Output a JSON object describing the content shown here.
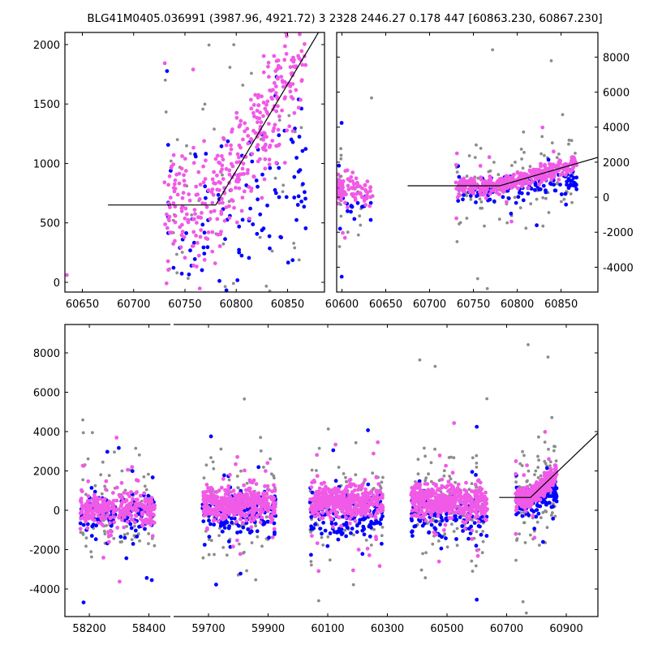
{
  "title": "BLG41M0405.036991 (3987.96, 4921.72)   3 2328 2446.27 0.178 447 [60863.230, 60867.230]",
  "colors": {
    "gray": "#8c8c8c",
    "blue": "#0000ff",
    "pink": "#f05ae6",
    "line": "#000000"
  },
  "chart_data": [
    {
      "type": "scatter",
      "panel": "top-left zoom on the last season",
      "xlim": [
        60633,
        60886
      ],
      "ylim": [
        -82,
        2102
      ],
      "xticks": [
        60650,
        60700,
        60750,
        60800,
        60850
      ],
      "yticks": [
        0,
        500,
        1000,
        1500,
        2000
      ],
      "yaxis_side": "left"
    },
    {
      "type": "scatter",
      "panel": "top-right zoom on the last season",
      "xlim": [
        60594,
        60892
      ],
      "ylim": [
        -5417,
        9407
      ],
      "xticks": [
        60600,
        60650,
        60700,
        60750,
        60800,
        60850
      ],
      "yticks": [
        -4000,
        -2000,
        0,
        2000,
        4000,
        6000,
        8000
      ],
      "yaxis_side": "right"
    },
    {
      "type": "scatter",
      "panel": "bottom full light curve, broken x axis",
      "xlim_segments": [
        [
          58118,
          58472
        ],
        [
          59583,
          61006
        ]
      ],
      "ylim": [
        -5402,
        9443
      ],
      "xticks": [
        58200,
        58400,
        59700,
        59900,
        60100,
        60300,
        60500,
        60700,
        60900
      ],
      "yticks": [
        -4000,
        -2000,
        0,
        2000,
        4000,
        6000,
        8000
      ],
      "yaxis_side": "left"
    }
  ],
  "model_line": {
    "flat_start": 60675,
    "break": 60780,
    "flat_level": 650,
    "slope_per_day": 14.5
  },
  "seasons": [
    {
      "start": 58170,
      "end": 58420,
      "pink_mean": 50,
      "blue_mean": -100,
      "n": 520
    },
    {
      "start": 59680,
      "end": 59925,
      "pink_mean": 350,
      "blue_mean": -150,
      "n": 700
    },
    {
      "start": 60040,
      "end": 60285,
      "pink_mean": 400,
      "blue_mean": -200,
      "n": 700
    },
    {
      "start": 60380,
      "end": 60635,
      "pink_mean": 450,
      "blue_mean": -300,
      "n": 700
    },
    {
      "start": 60730,
      "end": 60868,
      "pink_mean": 650,
      "blue_mean": 350,
      "n": 600,
      "trend": true
    },
    {
      "start": 60596,
      "end": 60601,
      "pink_mean": 500,
      "blue_mean": 400,
      "n": 40
    }
  ]
}
